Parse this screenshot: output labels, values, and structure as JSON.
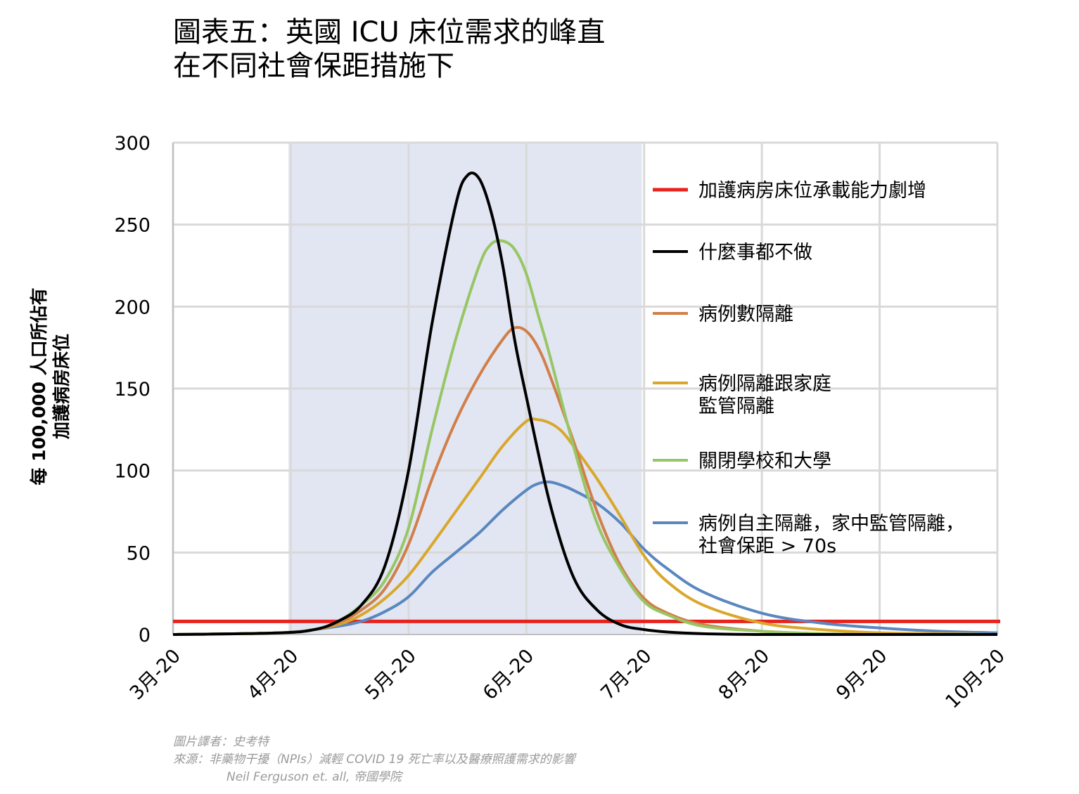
{
  "title": {
    "line1": "圖表五：英國 ICU 床位需求的峰直",
    "line2": "在不同社會保距措施下"
  },
  "credits": {
    "translator": "圖片譯者：史考特",
    "source": "來源：非藥物干擾（NPIs）減輕 COVID 19 死亡率以及醫療照護需求的影響",
    "authors": "Neil Ferguson et. all, 帝國學院"
  },
  "colors": {
    "capacity": "#e8231e",
    "nothing": "#000000",
    "case_isolation": "#d17f4a",
    "household": "#d9a72c",
    "schools": "#98c664",
    "distancing": "#5a87bf",
    "shade": "#e1e6f2",
    "grid": "#d9d9d9"
  },
  "chart_data": {
    "type": "line",
    "title": "圖表五：英國 ICU 床位需求的峰直 在不同社會保距措施下",
    "ylabel_lines": [
      "每 100,000 人口所佔有",
      "加護病房床位"
    ],
    "xlabel": "",
    "x_ticks": [
      "3月-20",
      "4月-20",
      "5月-20",
      "6月-20",
      "7月-20",
      "8月-20",
      "9月-20",
      "10月-20"
    ],
    "x_range_months": [
      0,
      7
    ],
    "y_ticks": [
      0,
      50,
      100,
      150,
      200,
      250,
      300
    ],
    "ylim": [
      0,
      300
    ],
    "grid": true,
    "legend_position": "right",
    "shaded_period": {
      "from_month": 0.98,
      "to_month": 3.98
    },
    "series": [
      {
        "name": "加護病房床位承載能力劇增",
        "key": "capacity",
        "kind": "constant",
        "value": 8
      },
      {
        "name": "什麼事都不做",
        "key": "nothing",
        "x": [
          0,
          0.9,
          1.2,
          1.4,
          1.6,
          1.8,
          2.0,
          2.2,
          2.4,
          2.5,
          2.6,
          2.7,
          2.8,
          2.9,
          3.0,
          3.2,
          3.4,
          3.6,
          3.8,
          4.0,
          4.2,
          4.5,
          5.0,
          5.5,
          6.0,
          7.0
        ],
        "y": [
          0,
          1,
          3,
          8,
          18,
          42,
          100,
          190,
          262,
          280,
          278,
          258,
          225,
          180,
          145,
          80,
          35,
          15,
          6,
          3,
          1.5,
          0.5,
          0,
          0,
          0,
          0
        ]
      },
      {
        "name": "病例數隔離",
        "key": "case_isolation",
        "x": [
          0,
          0.9,
          1.2,
          1.4,
          1.6,
          1.8,
          2.0,
          2.2,
          2.4,
          2.6,
          2.8,
          2.9,
          3.0,
          3.1,
          3.2,
          3.4,
          3.6,
          3.8,
          4.0,
          4.2,
          4.5,
          5.0,
          5.5,
          6.0,
          7.0
        ],
        "y": [
          0,
          1,
          3,
          7,
          15,
          28,
          55,
          95,
          130,
          158,
          180,
          187,
          185,
          175,
          158,
          118,
          75,
          42,
          22,
          13,
          6,
          2,
          0.5,
          0,
          0
        ]
      },
      {
        "name": "病例隔離跟家庭監管隔離",
        "key": "household",
        "x": [
          0,
          0.9,
          1.2,
          1.4,
          1.6,
          1.8,
          2.0,
          2.2,
          2.4,
          2.6,
          2.8,
          3.0,
          3.1,
          3.2,
          3.3,
          3.4,
          3.6,
          3.8,
          4.0,
          4.2,
          4.5,
          5.0,
          5.5,
          6.0,
          6.5,
          7.0
        ],
        "y": [
          0,
          1,
          3,
          6,
          12,
          22,
          36,
          55,
          75,
          95,
          115,
          130,
          131,
          129,
          124,
          115,
          95,
          72,
          48,
          32,
          18,
          7,
          3,
          1,
          0.5,
          0
        ]
      },
      {
        "name": "關閉學校和大學",
        "key": "schools",
        "x": [
          0,
          0.9,
          1.2,
          1.4,
          1.6,
          1.8,
          2.0,
          2.2,
          2.4,
          2.6,
          2.7,
          2.8,
          2.9,
          3.0,
          3.1,
          3.2,
          3.4,
          3.6,
          3.8,
          4.0,
          4.2,
          4.5,
          5.0,
          5.5,
          6.0,
          7.0
        ],
        "y": [
          0,
          1,
          3,
          8,
          18,
          33,
          65,
          125,
          180,
          225,
          238,
          240,
          235,
          220,
          195,
          170,
          115,
          68,
          40,
          20,
          12,
          5,
          2,
          0.5,
          0,
          0
        ]
      },
      {
        "name": "病例自主隔離，家中監管隔離，社會保距 > 70s",
        "key": "distancing",
        "x": [
          0,
          0.9,
          1.2,
          1.4,
          1.6,
          1.8,
          2.0,
          2.2,
          2.4,
          2.6,
          2.8,
          3.0,
          3.1,
          3.2,
          3.3,
          3.4,
          3.6,
          3.8,
          4.0,
          4.2,
          4.5,
          5.0,
          5.5,
          6.0,
          6.5,
          7.0
        ],
        "y": [
          0,
          1,
          3,
          5,
          8,
          14,
          23,
          38,
          50,
          62,
          76,
          88,
          92,
          93,
          91,
          88,
          80,
          68,
          52,
          40,
          26,
          13,
          7,
          4,
          2,
          1
        ]
      }
    ]
  }
}
